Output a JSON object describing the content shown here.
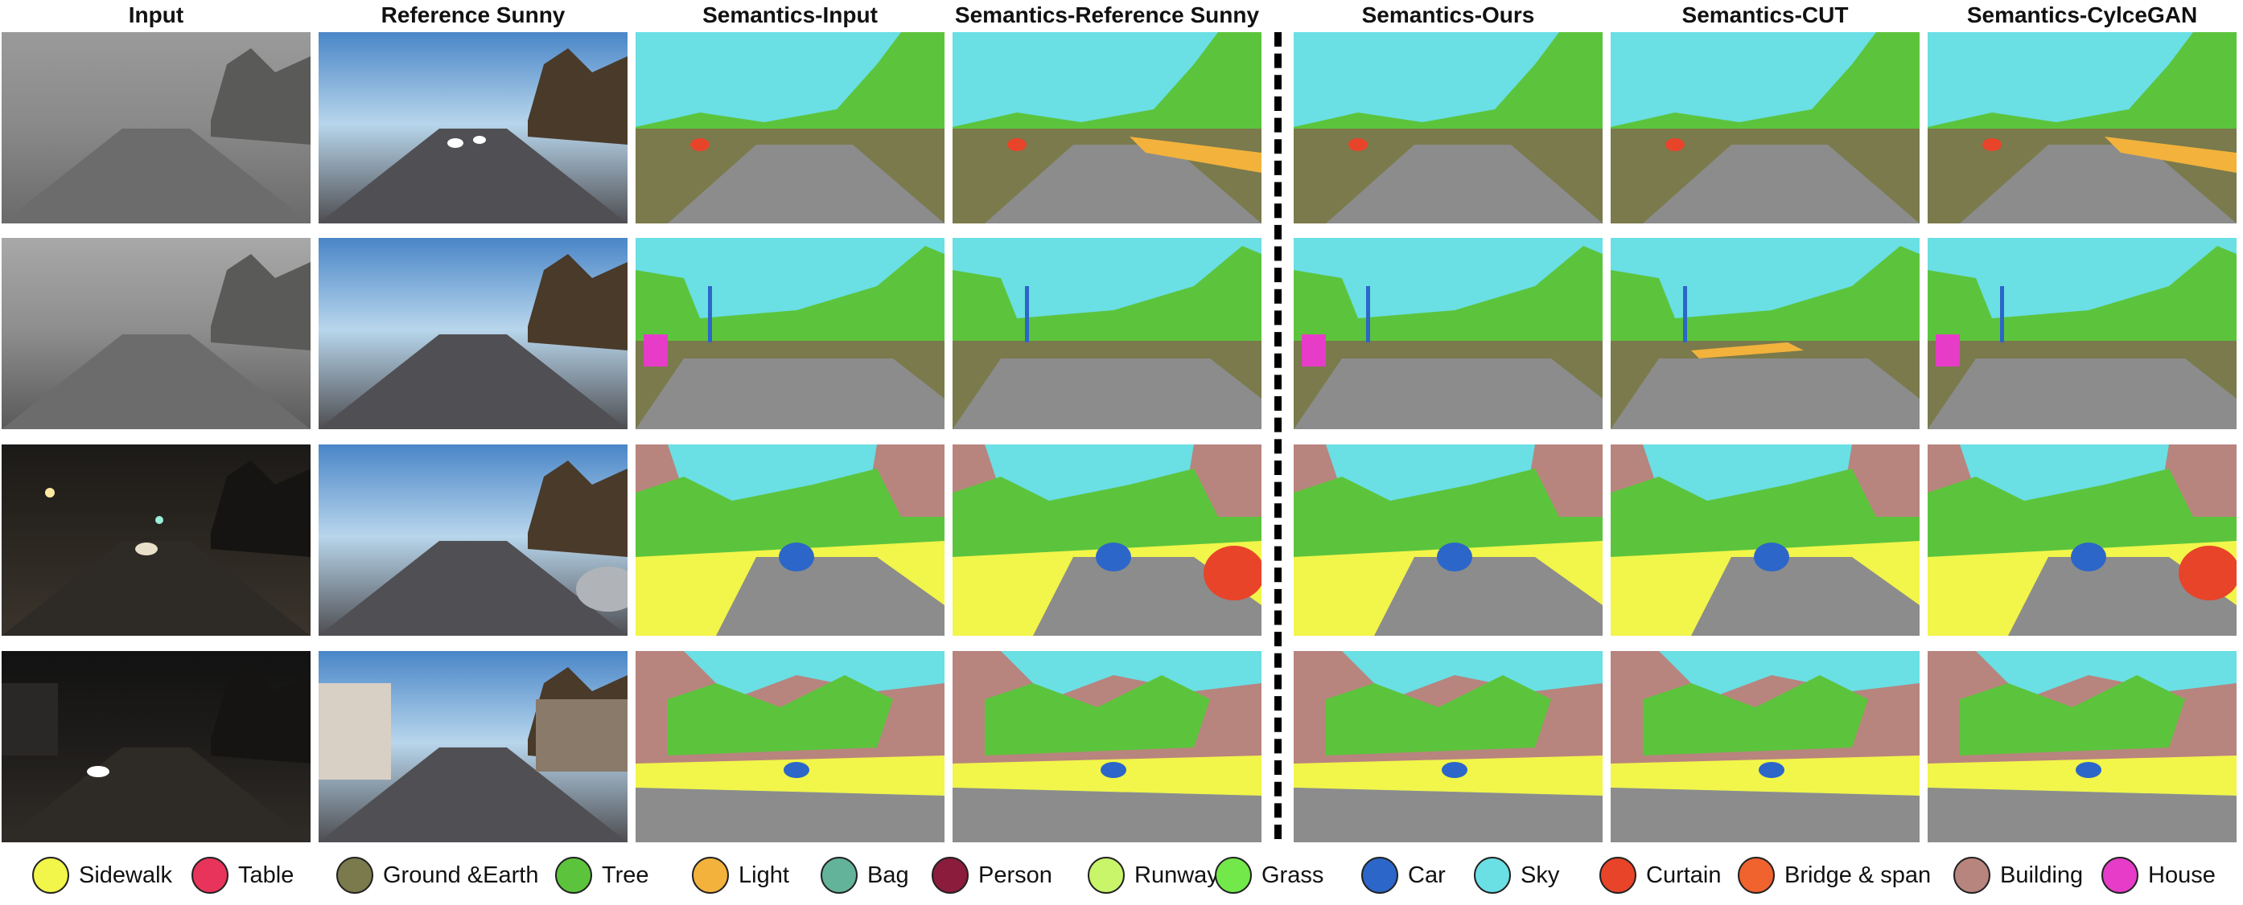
{
  "columns": [
    {
      "id": "input",
      "title": "Input"
    },
    {
      "id": "reference",
      "title": "Reference Sunny"
    },
    {
      "id": "sem_input",
      "title": "Semantics-Input"
    },
    {
      "id": "sem_reference",
      "title": "Semantics-Reference Sunny"
    },
    {
      "id": "sem_ours",
      "title": "Semantics-Ours"
    },
    {
      "id": "sem_cut",
      "title": "Semantics-CUT"
    },
    {
      "id": "sem_cyclegan",
      "title": "Semantics-CylceGAN"
    }
  ],
  "rows": [
    {
      "id": "fog"
    },
    {
      "id": "overcast-snow"
    },
    {
      "id": "night-lit"
    },
    {
      "id": "night-dark"
    }
  ],
  "legend": [
    {
      "label": "Sidewalk",
      "color": "#f2f54a"
    },
    {
      "label": "Table",
      "color": "#e8345a"
    },
    {
      "label": "Ground &Earth",
      "color": "#7a7a4c"
    },
    {
      "label": "Tree",
      "color": "#5cc43c"
    },
    {
      "label": "Light",
      "color": "#f2b23c"
    },
    {
      "label": "Bag",
      "color": "#63b39a"
    },
    {
      "label": "Person",
      "color": "#8c1c3c"
    },
    {
      "label": "Runway",
      "color": "#c8f56a"
    },
    {
      "label": "Grass",
      "color": "#72e84a"
    },
    {
      "label": "Car",
      "color": "#2c66c8"
    },
    {
      "label": "Sky",
      "color": "#6adfe4"
    },
    {
      "label": "Curtain",
      "color": "#e8442a"
    },
    {
      "label": "Bridge & span",
      "color": "#f0622e"
    },
    {
      "label": "Building",
      "color": "#b8847e"
    },
    {
      "label": "House",
      "color": "#e63cc8"
    }
  ],
  "colors": {
    "road": "#8c8c8c",
    "divider": "#000000"
  }
}
